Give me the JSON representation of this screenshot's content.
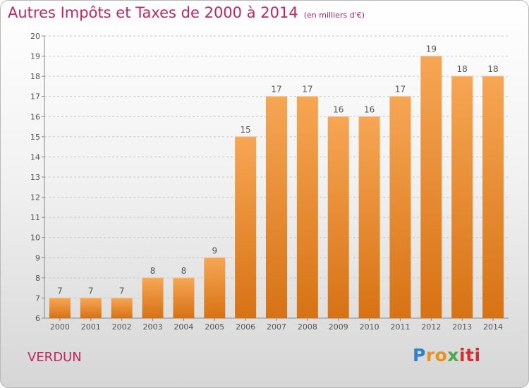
{
  "title": "Autres Impôts et Taxes de 2000 à 2014",
  "title_unit": "(en milliers d'€)",
  "city": "VERDUN",
  "logo": {
    "text": "Proxiti",
    "colors": [
      "#2f7fc9",
      "#e8911c",
      "#49a94b",
      "#d62d2d"
    ]
  },
  "colors": {
    "bar_light": "#f7a654",
    "bar_dark": "#d77214",
    "title": "#c2265e",
    "label": "#555555"
  },
  "chart_data": {
    "type": "bar",
    "title": "Autres Impôts et Taxes de 2000 à 2014",
    "subtitle": "(en milliers d'€)",
    "xlabel": "",
    "ylabel": "",
    "categories": [
      "2000",
      "2001",
      "2002",
      "2003",
      "2004",
      "2005",
      "2006",
      "2007",
      "2008",
      "2009",
      "2010",
      "2011",
      "2012",
      "2013",
      "2014"
    ],
    "values": [
      7,
      7,
      7,
      8,
      8,
      9,
      15,
      17,
      17,
      16,
      16,
      17,
      19,
      18,
      18
    ],
    "ylim": [
      6,
      20
    ],
    "yticks": [
      6,
      7,
      8,
      9,
      10,
      11,
      12,
      13,
      14,
      15,
      16,
      17,
      18,
      19,
      20
    ],
    "grid": "horizontal dashed",
    "data_labels": true,
    "legend": "none"
  }
}
